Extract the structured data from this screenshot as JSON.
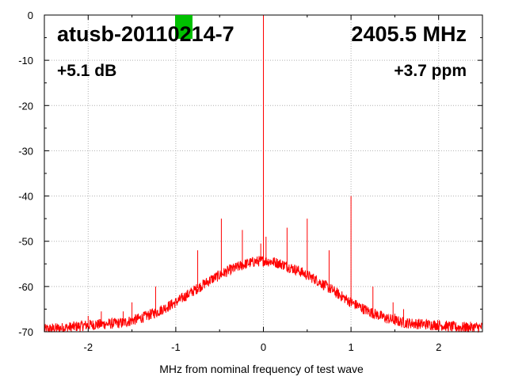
{
  "chart_data": {
    "type": "line",
    "xlabel": "MHz from nominal frequency of test wave",
    "ylabel": "",
    "xlim": [
      -2.5,
      2.5
    ],
    "ylim": [
      -70,
      0
    ],
    "x_ticks": [
      -2,
      -1,
      0,
      1,
      2
    ],
    "y_ticks": [
      0,
      -10,
      -20,
      -30,
      -40,
      -50,
      -60,
      -70
    ],
    "x_tick_labels": [
      "-2",
      "-1",
      "0",
      "1",
      "2"
    ],
    "y_tick_labels": [
      "0",
      "-10",
      "-20",
      "-30",
      "-40",
      "-50",
      "-60",
      "-70"
    ],
    "grid": true,
    "series_color": "#ff0000",
    "marker_color": "#00c000",
    "annotations": {
      "device": "atusb-20110214-7",
      "frequency": "2405.5 MHz",
      "gain": "+5.1 dB",
      "offset": "+3.7 ppm"
    },
    "envelope": {
      "x": [
        -2.5,
        -2.2,
        -2.0,
        -1.8,
        -1.6,
        -1.4,
        -1.2,
        -1.0,
        -0.8,
        -0.6,
        -0.4,
        -0.2,
        -0.1,
        0.0,
        0.1,
        0.2,
        0.4,
        0.6,
        0.8,
        1.0,
        1.2,
        1.4,
        1.6,
        1.8,
        2.0,
        2.2,
        2.5
      ],
      "y": [
        -69.5,
        -69,
        -68.5,
        -68.3,
        -68,
        -67,
        -65.5,
        -63.5,
        -61,
        -58.5,
        -56.5,
        -55,
        -54.5,
        -54.3,
        -54.5,
        -55,
        -56.5,
        -58.5,
        -61,
        -63.5,
        -65.5,
        -67,
        -68,
        -68.3,
        -68.5,
        -69,
        -69
      ]
    },
    "spurs": [
      {
        "x": -2.0,
        "y": -66.5
      },
      {
        "x": -1.85,
        "y": -65.5
      },
      {
        "x": -1.6,
        "y": -65.5
      },
      {
        "x": -1.5,
        "y": -63.5
      },
      {
        "x": -1.23,
        "y": -60
      },
      {
        "x": -0.75,
        "y": -52
      },
      {
        "x": -0.48,
        "y": -45
      },
      {
        "x": -0.24,
        "y": -47.5
      },
      {
        "x": -0.03,
        "y": -50.5
      },
      {
        "x": 0.0,
        "y": 0
      },
      {
        "x": 0.03,
        "y": -49
      },
      {
        "x": 0.27,
        "y": -47
      },
      {
        "x": 0.5,
        "y": -45
      },
      {
        "x": 0.75,
        "y": -52
      },
      {
        "x": 1.0,
        "y": -40
      },
      {
        "x": 1.25,
        "y": -60
      },
      {
        "x": 1.48,
        "y": -63.5
      },
      {
        "x": 1.5,
        "y": -66
      },
      {
        "x": 1.6,
        "y": -65
      }
    ]
  }
}
